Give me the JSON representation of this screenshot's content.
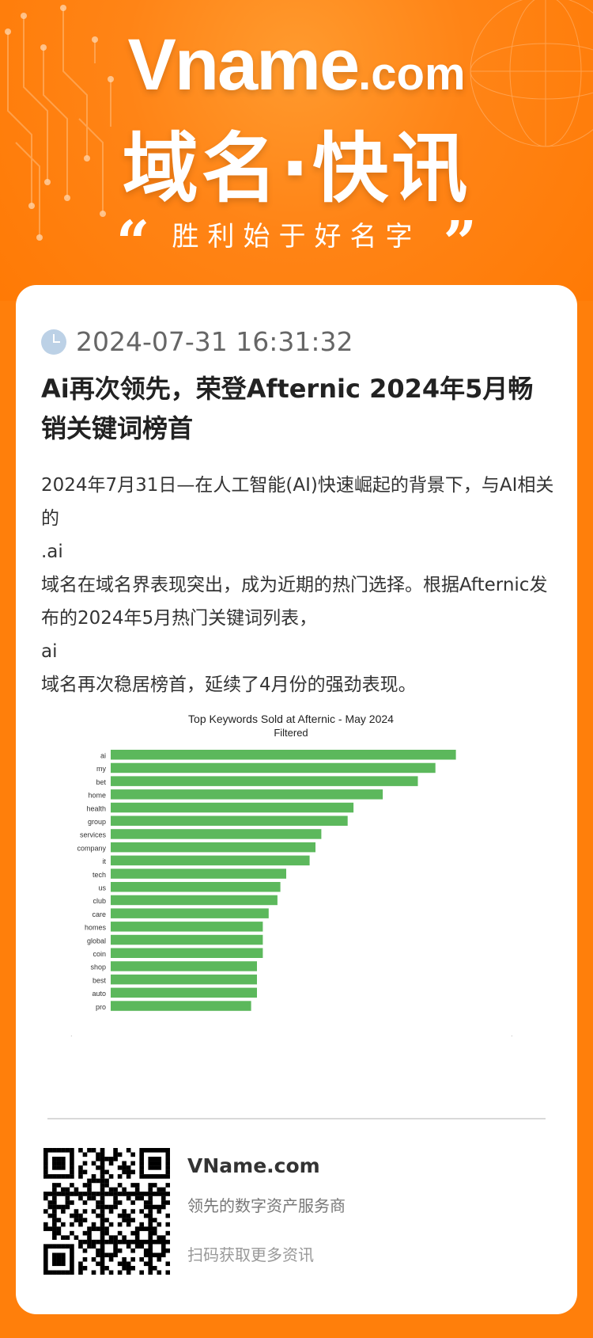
{
  "header": {
    "logo_main": "Vname",
    "logo_suffix": ".com",
    "title": "域名·快讯",
    "slogan": "胜利始于好名字"
  },
  "article": {
    "datetime": "2024-07-31 16:31:32",
    "title": "Ai再次领先，荣登Afternic 2024年5月畅销关键词榜首",
    "paragraphs": [
      "2024年7月31日—在人工智能(AI)快速崛起的背景下，与AI相关的",
      ".ai",
      "域名在域名界表现突出，成为近期的热门选择。根据Afternic发布的2024年5月热门关键词列表，",
      "ai",
      "域名再次稳居榜首，延续了4月份的强劲表现。"
    ]
  },
  "chart_data": {
    "type": "bar",
    "orientation": "horizontal",
    "title": "Top Keywords Sold at Afternic - May 2024",
    "subtitle": "Filtered",
    "categories": [
      "ai",
      "my",
      "bet",
      "home",
      "health",
      "group",
      "services",
      "company",
      "it",
      "tech",
      "us",
      "club",
      "care",
      "homes",
      "global",
      "coin",
      "shop",
      "best",
      "auto",
      "pro"
    ],
    "values": [
      59,
      55.5,
      52.5,
      46.5,
      41.5,
      40.5,
      36,
      35,
      34,
      30,
      29,
      28.5,
      27,
      26,
      26,
      26,
      25,
      25,
      25,
      24
    ],
    "xlim": [
      0,
      60
    ],
    "color": "#5cb85c"
  },
  "footer": {
    "site": "VName.com",
    "tagline": "领先的数字资产服务商",
    "scan_hint": "扫码获取更多资讯"
  },
  "colors": {
    "background": "#ff7f0b",
    "card": "#ffffff",
    "bar": "#5cb85c"
  }
}
